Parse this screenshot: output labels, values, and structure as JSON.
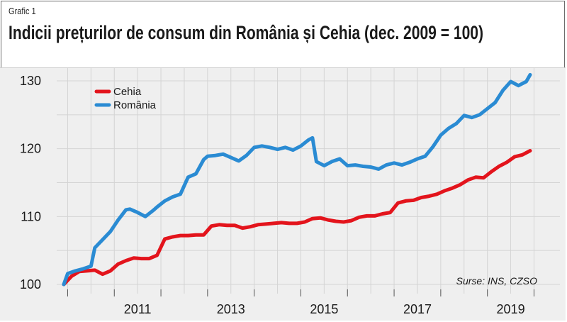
{
  "header": {
    "label": "Grafic 1",
    "title": "Indicii prețurilor de consum din România și Cehia (dec. 2009 = 100)"
  },
  "source": "Surse: INS, CZSO",
  "colors": {
    "Cehia": "#e3141c",
    "Romania": "#2a8bd3"
  },
  "chart_data": {
    "type": "line",
    "title": "Indicii prețurilor de consum din România și Cehia (dec. 2009 = 100)",
    "xlabel": "",
    "ylabel": "",
    "xlim": [
      2009.917,
      2019.917
    ],
    "ylim": [
      100,
      131.5
    ],
    "x_ticks": [
      "2011",
      "2013",
      "2015",
      "2017",
      "2019"
    ],
    "y_ticks": [
      "100",
      "110",
      "120",
      "130"
    ],
    "grid": true,
    "legend_position": "top-left",
    "series": [
      {
        "name": "Cehia",
        "color": "#e3141c",
        "x": [
          2009.917,
          2010.083,
          2010.25,
          2010.417,
          2010.583,
          2010.75,
          2010.917,
          2011.083,
          2011.25,
          2011.417,
          2011.583,
          2011.75,
          2011.917,
          2012.083,
          2012.25,
          2012.417,
          2012.583,
          2012.75,
          2012.917,
          2013.083,
          2013.25,
          2013.417,
          2013.583,
          2013.75,
          2013.917,
          2014.083,
          2014.25,
          2014.417,
          2014.583,
          2014.75,
          2014.917,
          2015.083,
          2015.25,
          2015.417,
          2015.583,
          2015.75,
          2015.917,
          2016.083,
          2016.25,
          2016.417,
          2016.583,
          2016.75,
          2016.917,
          2017.083,
          2017.25,
          2017.417,
          2017.583,
          2017.75,
          2017.917,
          2018.083,
          2018.25,
          2018.417,
          2018.583,
          2018.75,
          2018.917,
          2019.083,
          2019.25,
          2019.417,
          2019.583,
          2019.75,
          2019.917
        ],
        "values": [
          100.0,
          101.2,
          101.9,
          102.0,
          102.1,
          101.5,
          102.0,
          103.0,
          103.5,
          103.9,
          103.8,
          103.8,
          104.3,
          106.7,
          107.0,
          107.2,
          107.2,
          107.3,
          107.3,
          108.6,
          108.8,
          108.7,
          108.7,
          108.3,
          108.5,
          108.8,
          108.9,
          109.0,
          109.1,
          109.0,
          109.0,
          109.2,
          109.7,
          109.8,
          109.5,
          109.3,
          109.2,
          109.4,
          109.9,
          110.1,
          110.1,
          110.4,
          110.6,
          112.0,
          112.3,
          112.4,
          112.8,
          113.0,
          113.3,
          113.8,
          114.2,
          114.7,
          115.4,
          115.8,
          115.7,
          116.6,
          117.4,
          118.0,
          118.8,
          119.1,
          119.7
        ]
      },
      {
        "name": "România",
        "color": "#2a8bd3",
        "x": [
          2009.917,
          2010.0,
          2010.167,
          2010.333,
          2010.5,
          2010.583,
          2010.75,
          2010.917,
          2011.083,
          2011.25,
          2011.333,
          2011.5,
          2011.667,
          2011.833,
          2011.917,
          2012.083,
          2012.25,
          2012.417,
          2012.583,
          2012.75,
          2012.917,
          2013.0,
          2013.167,
          2013.333,
          2013.5,
          2013.667,
          2013.833,
          2014.0,
          2014.167,
          2014.333,
          2014.5,
          2014.667,
          2014.833,
          2015.0,
          2015.167,
          2015.25,
          2015.333,
          2015.5,
          2015.667,
          2015.833,
          2016.0,
          2016.167,
          2016.333,
          2016.5,
          2016.667,
          2016.833,
          2017.0,
          2017.167,
          2017.333,
          2017.5,
          2017.667,
          2017.833,
          2018.0,
          2018.167,
          2018.333,
          2018.5,
          2018.667,
          2018.833,
          2019.0,
          2019.167,
          2019.333,
          2019.5,
          2019.667,
          2019.833,
          2019.917
        ],
        "values": [
          100.0,
          101.6,
          102.0,
          102.3,
          102.7,
          105.4,
          106.6,
          107.8,
          109.5,
          111.0,
          111.1,
          110.6,
          110.0,
          110.9,
          111.4,
          112.3,
          112.9,
          113.3,
          115.8,
          116.3,
          118.4,
          118.9,
          119.0,
          119.2,
          118.7,
          118.2,
          119.0,
          120.2,
          120.4,
          120.2,
          119.9,
          120.2,
          119.8,
          120.4,
          121.3,
          121.6,
          118.1,
          117.5,
          118.1,
          118.5,
          117.5,
          117.6,
          117.4,
          117.3,
          117.0,
          117.6,
          117.9,
          117.6,
          118.0,
          118.5,
          118.9,
          120.3,
          122.0,
          123.0,
          123.7,
          124.9,
          124.6,
          125.0,
          125.9,
          126.8,
          128.6,
          129.9,
          129.3,
          129.9,
          130.9
        ]
      }
    ]
  }
}
